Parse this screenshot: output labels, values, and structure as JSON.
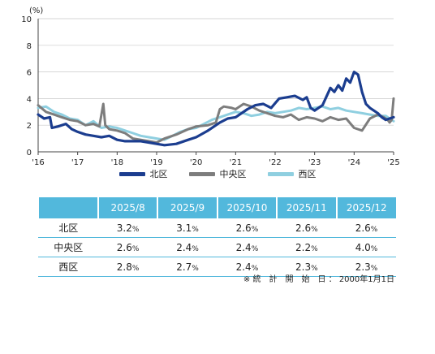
{
  "chart_data": {
    "type": "line",
    "yunit": "(%)",
    "ylim": [
      0,
      10
    ],
    "yticks": [
      "0",
      "2",
      "4",
      "6",
      "8",
      "10"
    ],
    "xlim": [
      2016,
      2025
    ],
    "xticks": [
      "'16",
      "'17",
      "'18",
      "'19",
      "'20",
      "'21",
      "'22",
      "'23",
      "'24",
      "'25"
    ],
    "grid": "horizontal",
    "legend_position": "bottom",
    "series": [
      {
        "name": "北区",
        "color": "#1b3d8f",
        "x": [
          2016.0,
          2016.15,
          2016.3,
          2016.35,
          2016.5,
          2016.7,
          2016.85,
          2017.0,
          2017.2,
          2017.4,
          2017.6,
          2017.8,
          2018.0,
          2018.2,
          2018.4,
          2018.6,
          2018.8,
          2019.0,
          2019.2,
          2019.5,
          2019.8,
          2020.0,
          2020.3,
          2020.6,
          2020.8,
          2021.0,
          2021.3,
          2021.5,
          2021.7,
          2021.9,
          2022.1,
          2022.3,
          2022.5,
          2022.7,
          2022.8,
          2022.9,
          2023.0,
          2023.2,
          2023.4,
          2023.5,
          2023.6,
          2023.7,
          2023.8,
          2023.9,
          2024.0,
          2024.1,
          2024.2,
          2024.3,
          2024.4,
          2024.5,
          2024.6,
          2024.7,
          2024.8,
          2024.9,
          2025.0
        ],
        "values": [
          2.8,
          2.5,
          2.6,
          1.8,
          1.9,
          2.1,
          1.7,
          1.5,
          1.3,
          1.2,
          1.1,
          1.2,
          0.9,
          0.8,
          0.8,
          0.8,
          0.7,
          0.6,
          0.5,
          0.6,
          0.9,
          1.1,
          1.6,
          2.2,
          2.5,
          2.6,
          3.2,
          3.5,
          3.6,
          3.3,
          4.0,
          4.1,
          4.2,
          3.9,
          4.1,
          3.3,
          3.1,
          3.5,
          4.8,
          4.5,
          5.0,
          4.6,
          5.5,
          5.2,
          6.0,
          5.8,
          4.5,
          3.6,
          3.3,
          3.1,
          2.9,
          2.6,
          2.4,
          2.5,
          2.6
        ]
      },
      {
        "name": "中央区",
        "color": "#7d7d7d",
        "x": [
          2016.0,
          2016.2,
          2016.4,
          2016.6,
          2016.8,
          2017.0,
          2017.2,
          2017.4,
          2017.55,
          2017.65,
          2017.7,
          2017.8,
          2018.0,
          2018.2,
          2018.4,
          2018.6,
          2018.8,
          2019.0,
          2019.2,
          2019.5,
          2019.8,
          2020.0,
          2020.3,
          2020.5,
          2020.6,
          2020.7,
          2020.9,
          2021.0,
          2021.2,
          2021.4,
          2021.6,
          2021.8,
          2022.0,
          2022.2,
          2022.4,
          2022.6,
          2022.8,
          2023.0,
          2023.2,
          2023.4,
          2023.6,
          2023.8,
          2024.0,
          2024.2,
          2024.4,
          2024.6,
          2024.75,
          2024.85,
          2024.9,
          2024.95,
          2025.0
        ],
        "values": [
          3.5,
          3.0,
          2.8,
          2.6,
          2.4,
          2.3,
          2.0,
          2.1,
          1.9,
          3.6,
          2.0,
          1.7,
          1.6,
          1.4,
          1.0,
          0.9,
          0.8,
          0.7,
          1.0,
          1.3,
          1.7,
          1.9,
          2.0,
          2.2,
          3.2,
          3.4,
          3.3,
          3.2,
          3.6,
          3.4,
          3.1,
          2.9,
          2.7,
          2.6,
          2.8,
          2.4,
          2.6,
          2.5,
          2.3,
          2.6,
          2.4,
          2.5,
          1.8,
          1.6,
          2.5,
          2.8,
          2.6,
          2.4,
          2.2,
          2.4,
          4.0
        ]
      },
      {
        "name": "西区",
        "color": "#8fcfe0",
        "x": [
          2016.0,
          2016.2,
          2016.4,
          2016.6,
          2016.8,
          2017.0,
          2017.2,
          2017.4,
          2017.6,
          2017.8,
          2018.0,
          2018.2,
          2018.4,
          2018.6,
          2018.8,
          2019.0,
          2019.2,
          2019.4,
          2019.6,
          2019.8,
          2020.0,
          2020.2,
          2020.4,
          2020.6,
          2020.8,
          2021.0,
          2021.2,
          2021.4,
          2021.6,
          2021.8,
          2022.0,
          2022.2,
          2022.4,
          2022.6,
          2022.8,
          2023.0,
          2023.2,
          2023.4,
          2023.6,
          2023.8,
          2024.0,
          2024.2,
          2024.4,
          2024.6,
          2024.8,
          2025.0
        ],
        "values": [
          3.3,
          3.4,
          3.0,
          2.8,
          2.5,
          2.4,
          2.0,
          2.3,
          1.8,
          1.9,
          1.8,
          1.6,
          1.4,
          1.2,
          1.1,
          1.0,
          0.9,
          1.2,
          1.5,
          1.7,
          1.8,
          2.1,
          2.4,
          2.6,
          2.8,
          3.0,
          2.9,
          2.7,
          2.8,
          3.0,
          2.9,
          3.0,
          3.1,
          3.3,
          3.2,
          3.3,
          3.4,
          3.2,
          3.3,
          3.1,
          3.0,
          2.9,
          2.8,
          2.7,
          2.7,
          2.3
        ]
      }
    ]
  },
  "table": {
    "headers": [
      "",
      "2025/8",
      "2025/9",
      "2025/10",
      "2025/11",
      "2025/12"
    ],
    "rows": [
      {
        "label": "北区",
        "values": [
          "3.2",
          "3.1",
          "2.6",
          "2.6",
          "2.6"
        ]
      },
      {
        "label": "中央区",
        "values": [
          "2.6",
          "2.4",
          "2.4",
          "2.2",
          "4.0"
        ]
      },
      {
        "label": "西区",
        "values": [
          "2.8",
          "2.7",
          "2.4",
          "2.3",
          "2.3"
        ]
      }
    ],
    "unit": "%"
  },
  "footnote": "※ 統　計　開　始　日 ： 2000年1月1日"
}
